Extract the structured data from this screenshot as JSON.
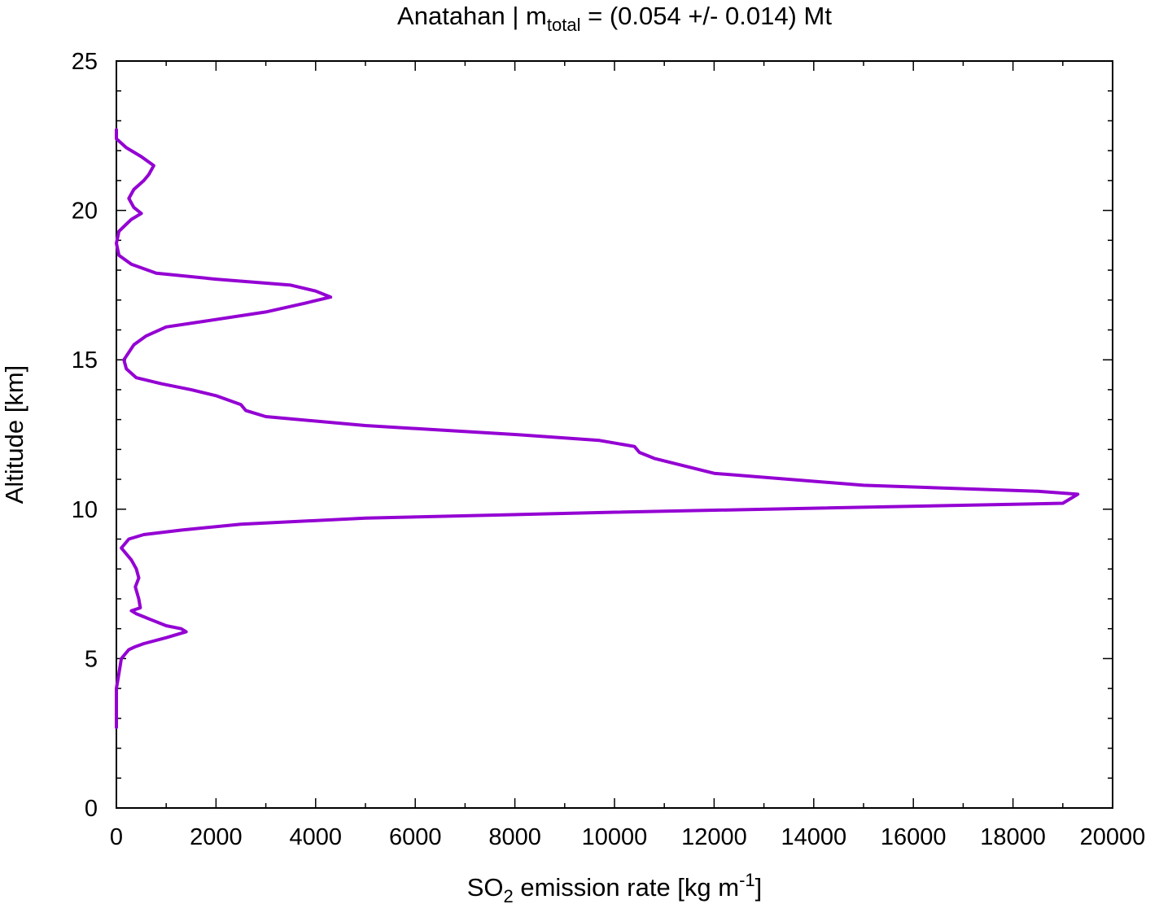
{
  "chart_data": {
    "type": "line",
    "title": {
      "prefix": "Anatahan | m",
      "subscript": "total",
      "suffix": " = (0.054 +/- 0.014) Mt"
    },
    "xlabel": {
      "prefix": "SO",
      "subscript": "2",
      "middle": " emission rate [kg m",
      "superscript": "-1",
      "suffix": "]"
    },
    "ylabel": "Altitude [km]",
    "xlim": [
      0,
      20000
    ],
    "ylim": [
      0,
      25
    ],
    "xticks": [
      0,
      2000,
      4000,
      6000,
      8000,
      10000,
      12000,
      14000,
      16000,
      18000,
      20000
    ],
    "xtick_labels": [
      "0",
      "2000",
      "4000",
      "6000",
      "8000",
      "10000",
      "12000",
      "14000",
      "16000",
      "18000",
      "20000"
    ],
    "yticks": [
      0,
      5,
      10,
      15,
      20,
      25
    ],
    "ytick_labels": [
      "0",
      "5",
      "10",
      "15",
      "20",
      "25"
    ],
    "grid": false,
    "legend": "none",
    "colors": {
      "series": "#9400d3",
      "axes": "#000000",
      "background": "#ffffff"
    },
    "series": [
      {
        "x": [
          0,
          0,
          0,
          50,
          100,
          250,
          380,
          550,
          1000,
          1400,
          1300,
          1000,
          700,
          550,
          400,
          300,
          480,
          450,
          380,
          450,
          400,
          300,
          100,
          250,
          550,
          1300,
          2500,
          5000,
          10000,
          19000,
          19300,
          18500,
          15000,
          12000,
          10800,
          10500,
          10400,
          9700,
          8000,
          5000,
          3000,
          2600,
          2500,
          2000,
          1500,
          900,
          400,
          200,
          150,
          350,
          600,
          1000,
          1800,
          3000,
          3800,
          4300,
          4000,
          3500,
          2000,
          800,
          300,
          50,
          0,
          50,
          300,
          500,
          350,
          250,
          350,
          550,
          650,
          750,
          500,
          200,
          0,
          0
        ],
        "y": [
          2.7,
          3.5,
          4.0,
          4.5,
          5.0,
          5.3,
          5.4,
          5.5,
          5.7,
          5.9,
          6.0,
          6.1,
          6.3,
          6.4,
          6.5,
          6.6,
          6.7,
          7.0,
          7.4,
          7.7,
          8.0,
          8.3,
          8.7,
          9.0,
          9.15,
          9.3,
          9.5,
          9.7,
          9.9,
          10.2,
          10.5,
          10.6,
          10.8,
          11.2,
          11.7,
          11.9,
          12.1,
          12.3,
          12.5,
          12.8,
          13.1,
          13.3,
          13.5,
          13.8,
          14.0,
          14.2,
          14.4,
          14.7,
          15.0,
          15.5,
          15.8,
          16.1,
          16.3,
          16.6,
          16.9,
          17.1,
          17.3,
          17.5,
          17.7,
          17.9,
          18.2,
          18.5,
          18.9,
          19.3,
          19.7,
          19.9,
          20.1,
          20.4,
          20.7,
          21.0,
          21.2,
          21.5,
          21.8,
          22.1,
          22.4,
          22.7
        ]
      }
    ]
  }
}
